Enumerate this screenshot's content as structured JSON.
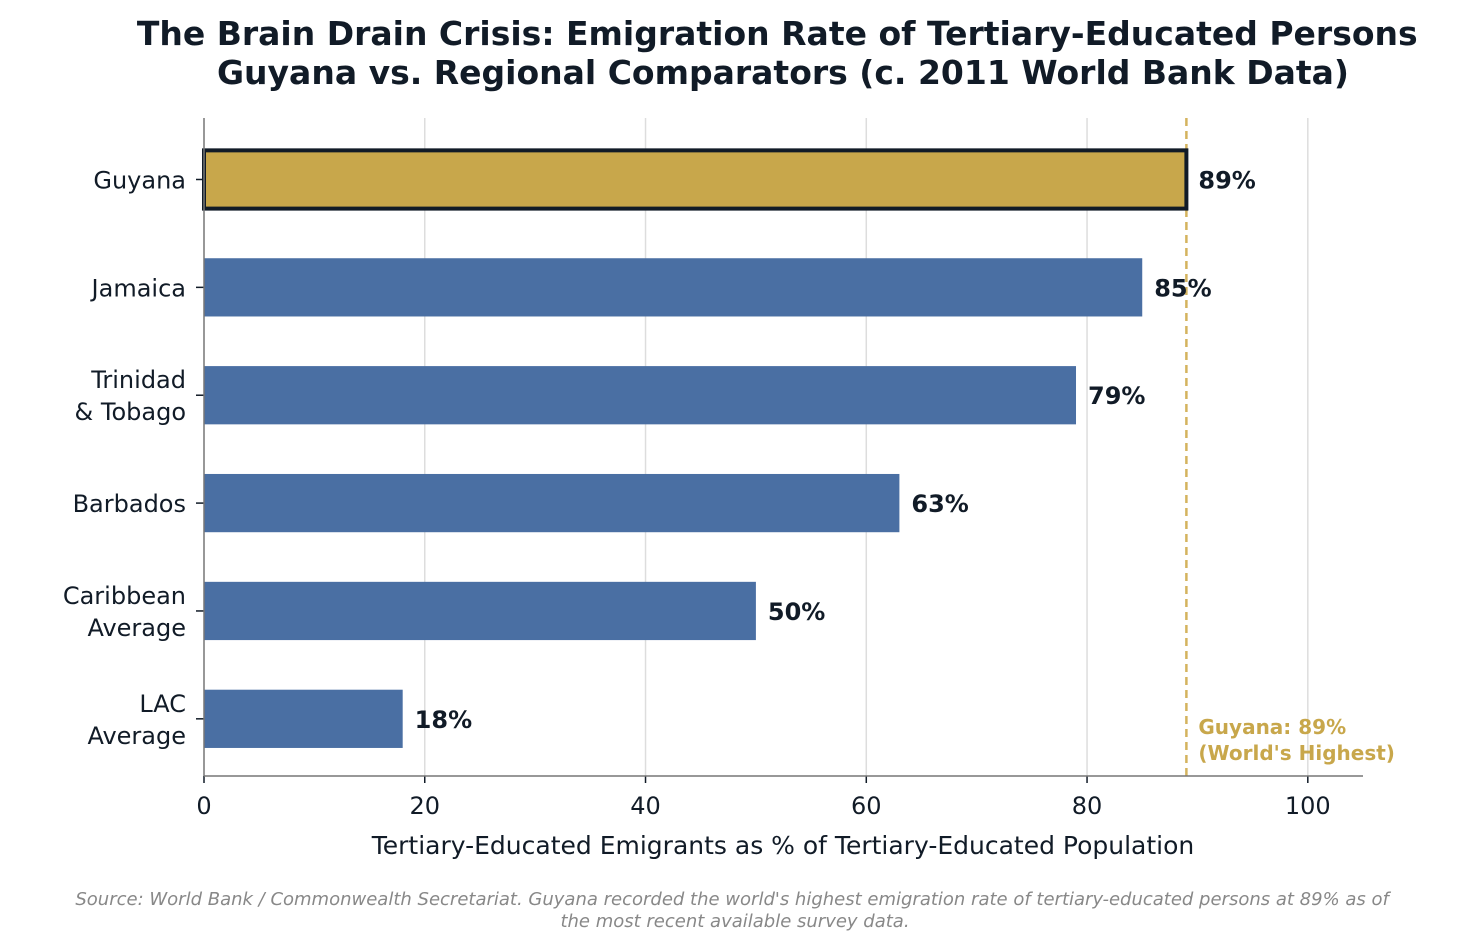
{
  "chart_data": {
    "type": "bar",
    "orientation": "horizontal",
    "title": [
      "The Brain Drain Crisis: Emigration Rate of Tertiary-Educated Persons",
      "Guyana vs. Regional Comparators (c. 2011 World Bank Data)"
    ],
    "categories": [
      [
        "Guyana"
      ],
      [
        "Jamaica"
      ],
      [
        "Trinidad",
        "& Tobago"
      ],
      [
        "Barbados"
      ],
      [
        "Caribbean",
        "Average"
      ],
      [
        "LAC",
        "Average"
      ]
    ],
    "values": [
      89,
      85,
      79,
      63,
      50,
      18
    ],
    "value_labels": [
      "89%",
      "85%",
      "79%",
      "63%",
      "50%",
      "18%"
    ],
    "highlight_index": 0,
    "xlabel": "Tertiary-Educated Emigrants as % of Tertiary-Educated Population",
    "ylabel": "",
    "xlim": [
      0,
      105
    ],
    "xticks": [
      0,
      20,
      40,
      60,
      80,
      100
    ],
    "grid": "vertical",
    "reference_line": {
      "value": 89,
      "style": "dashed",
      "annotation": [
        "Guyana: 89%",
        "(World's Highest)"
      ]
    },
    "colors": {
      "highlight": "#C8A74B",
      "bars": "#4A6FA3",
      "highlight_edge": "#111B27",
      "reference": "#D4B35E",
      "text": "#111B27"
    },
    "source": [
      "Source: World Bank / Commonwealth Secretariat. Guyana recorded the world's highest emigration rate of tertiary-educated persons at 89% as of",
      "the most recent available survey data."
    ]
  }
}
